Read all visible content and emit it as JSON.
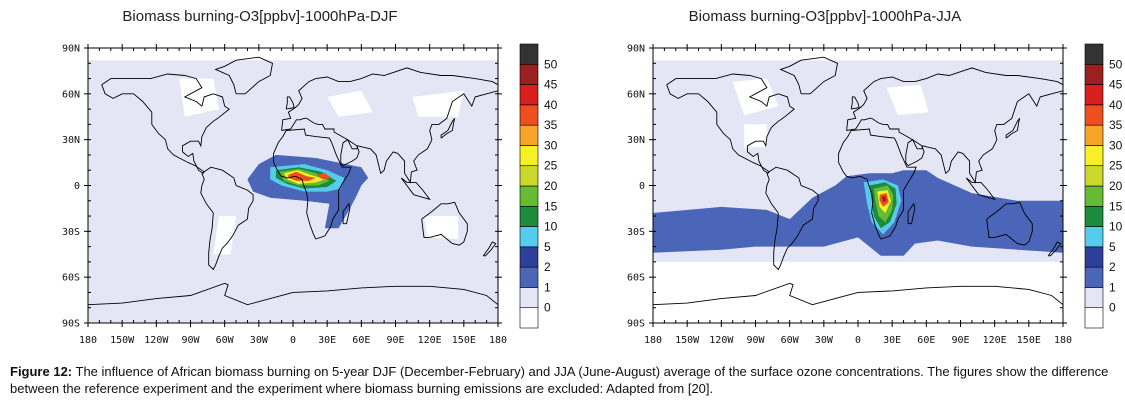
{
  "figure": {
    "caption_label": "Figure 12:",
    "caption_text": " The influence of African biomass burning on 5-year DJF (December-February) and JJA (June-August) average of the surface ozone concentrations. The figures show the difference between the reference experiment and the experiment where biomass burning emissions are excluded: Adapted from [20]."
  },
  "colors": {
    "levels": [
      "#ffffff",
      "#e4e6f5",
      "#4b66b8",
      "#2e3f9a",
      "#55ccee",
      "#1e8a3c",
      "#66bb33",
      "#c9d82b",
      "#f7f026",
      "#f7a528",
      "#ef4f1f",
      "#d91e1e",
      "#9b2020",
      "#333333"
    ],
    "land_outline": "#000000",
    "background": "#e4e6f5"
  },
  "colorbar": {
    "labels": [
      "0",
      "1",
      "2",
      "5",
      "10",
      "15",
      "20",
      "25",
      "30",
      "35",
      "40",
      "45",
      "50"
    ]
  },
  "axes": {
    "lat_labels": [
      "90N",
      "60N",
      "30N",
      "0",
      "30S",
      "60S",
      "90S"
    ],
    "lon_labels": [
      "180",
      "150W",
      "120W",
      "90W",
      "60W",
      "30W",
      "0",
      "30E",
      "60E",
      "90E",
      "120E",
      "150E",
      "180"
    ]
  },
  "panels": [
    {
      "id": "djf",
      "title": "Biomass burning-O3[ppbv]-1000hPa-DJF",
      "season": "DJF"
    },
    {
      "id": "jja",
      "title": "Biomass burning-O3[ppbv]-1000hPa-JJA",
      "season": "JJA"
    }
  ]
}
